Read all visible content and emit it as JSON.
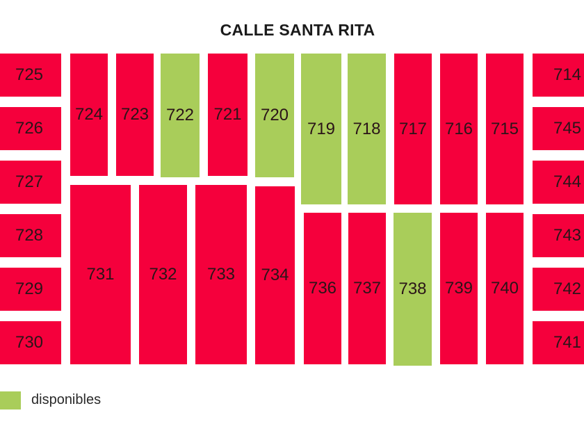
{
  "title": "CALLE SANTA RITA",
  "legend": {
    "available_label": "disponibles"
  },
  "colors": {
    "sold": "#f5003c",
    "available": "#a9cd5a"
  },
  "lots": [
    {
      "id": "725",
      "status": "sold"
    },
    {
      "id": "726",
      "status": "sold"
    },
    {
      "id": "727",
      "status": "sold"
    },
    {
      "id": "728",
      "status": "sold"
    },
    {
      "id": "729",
      "status": "sold"
    },
    {
      "id": "730",
      "status": "sold"
    },
    {
      "id": "724",
      "status": "sold"
    },
    {
      "id": "723",
      "status": "sold"
    },
    {
      "id": "722",
      "status": "available"
    },
    {
      "id": "721",
      "status": "sold"
    },
    {
      "id": "720",
      "status": "available"
    },
    {
      "id": "719",
      "status": "available"
    },
    {
      "id": "718",
      "status": "available"
    },
    {
      "id": "717",
      "status": "sold"
    },
    {
      "id": "716",
      "status": "sold"
    },
    {
      "id": "715",
      "status": "sold"
    },
    {
      "id": "731",
      "status": "sold"
    },
    {
      "id": "732",
      "status": "sold"
    },
    {
      "id": "733",
      "status": "sold"
    },
    {
      "id": "734",
      "status": "sold"
    },
    {
      "id": "736",
      "status": "sold"
    },
    {
      "id": "737",
      "status": "sold"
    },
    {
      "id": "738",
      "status": "available"
    },
    {
      "id": "739",
      "status": "sold"
    },
    {
      "id": "740",
      "status": "sold"
    },
    {
      "id": "714",
      "status": "sold"
    },
    {
      "id": "745",
      "status": "sold"
    },
    {
      "id": "744",
      "status": "sold"
    },
    {
      "id": "743",
      "status": "sold"
    },
    {
      "id": "742",
      "status": "sold"
    },
    {
      "id": "741",
      "status": "sold"
    }
  ]
}
